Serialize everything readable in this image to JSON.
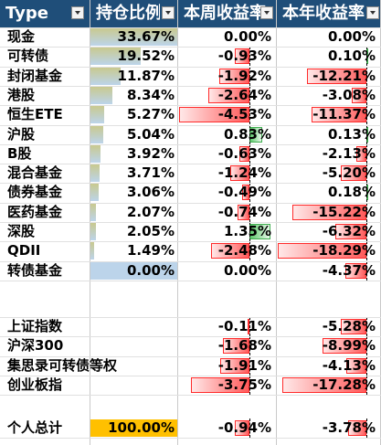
{
  "headers": {
    "type": "Type",
    "position": "持仓比例",
    "weekly": "本周收益率",
    "yearly": "本年收益率"
  },
  "rows": [
    {
      "name": "现金",
      "position": "33.67%",
      "position_value": 33.67,
      "weekly": "0.00%",
      "weekly_value": 0.0,
      "yearly": "0.00%",
      "yearly_value": 0.0
    },
    {
      "name": "可转债",
      "position": "19.52%",
      "position_value": 19.52,
      "weekly": "-0.93%",
      "weekly_value": -0.93,
      "yearly": "0.10%",
      "yearly_value": 0.1
    },
    {
      "name": "封闭基金",
      "position": "11.87%",
      "position_value": 11.87,
      "weekly": "-1.92%",
      "weekly_value": -1.92,
      "yearly": "-12.21%",
      "yearly_value": -12.21
    },
    {
      "name": "港股",
      "position": "8.34%",
      "position_value": 8.34,
      "weekly": "-2.64%",
      "weekly_value": -2.64,
      "yearly": "-3.08%",
      "yearly_value": -3.08
    },
    {
      "name": "恒生ETE",
      "position": "5.27%",
      "position_value": 5.27,
      "weekly": "-4.53%",
      "weekly_value": -4.53,
      "yearly": "-11.37%",
      "yearly_value": -11.37
    },
    {
      "name": "沪股",
      "position": "5.04%",
      "position_value": 5.04,
      "weekly": "0.83%",
      "weekly_value": 0.83,
      "yearly": "0.13%",
      "yearly_value": 0.13
    },
    {
      "name": "B股",
      "position": "3.92%",
      "position_value": 3.92,
      "weekly": "-0.63%",
      "weekly_value": -0.63,
      "yearly": "-2.13%",
      "yearly_value": -2.13
    },
    {
      "name": "混合基金",
      "position": "3.71%",
      "position_value": 3.71,
      "weekly": "-1.24%",
      "weekly_value": -1.24,
      "yearly": "-5.20%",
      "yearly_value": -5.2
    },
    {
      "name": "债券基金",
      "position": "3.06%",
      "position_value": 3.06,
      "weekly": "-0.49%",
      "weekly_value": -0.49,
      "yearly": "0.18%",
      "yearly_value": 0.18
    },
    {
      "name": "医药基金",
      "position": "2.07%",
      "position_value": 2.07,
      "weekly": "-0.74%",
      "weekly_value": -0.74,
      "yearly": "-15.22%",
      "yearly_value": -15.22
    },
    {
      "name": "深股",
      "position": "2.05%",
      "position_value": 2.05,
      "weekly": "1.35%",
      "weekly_value": 1.35,
      "yearly": "-6.32%",
      "yearly_value": -6.32
    },
    {
      "name": "QDII",
      "position": "1.49%",
      "position_value": 1.49,
      "weekly": "-2.48%",
      "weekly_value": -2.48,
      "yearly": "-18.29%",
      "yearly_value": -18.29
    },
    {
      "name": "转债基金",
      "position": "0.00%",
      "position_value": 0.0,
      "weekly": "0.00%",
      "weekly_value": 0.0,
      "yearly": "-4.37%",
      "yearly_value": -4.37
    }
  ],
  "indices": [
    {
      "name": "上证指数",
      "weekly": "-0.11%",
      "weekly_value": -0.11,
      "yearly": "-5.28%",
      "yearly_value": -5.28
    },
    {
      "name": "沪深300",
      "weekly": "-1.68%",
      "weekly_value": -1.68,
      "yearly": "-8.99%",
      "yearly_value": -8.99
    },
    {
      "name": "集思录可转债等权",
      "weekly": "-1.91%",
      "weekly_value": -1.91,
      "yearly": "-4.13%",
      "yearly_value": -4.13
    },
    {
      "name": "创业板指",
      "weekly": "-3.75%",
      "weekly_value": -3.75,
      "yearly": "-17.28%",
      "yearly_value": -17.28
    }
  ],
  "total": {
    "name": "个人总计",
    "position": "100.00%",
    "weekly": "-0.94%",
    "weekly_value": -0.94,
    "yearly": "-3.78%",
    "yearly_value": -3.78
  },
  "colors": {
    "header_bg": "#1f4e79",
    "header_text": "#ffffff",
    "position_bar_high": "#c9c98f",
    "position_bar_low": "#bcd4ea",
    "total_highlight": "#ffc000",
    "negative_bar": "#ff4b4b",
    "positive_bar": "#63c76f"
  }
}
